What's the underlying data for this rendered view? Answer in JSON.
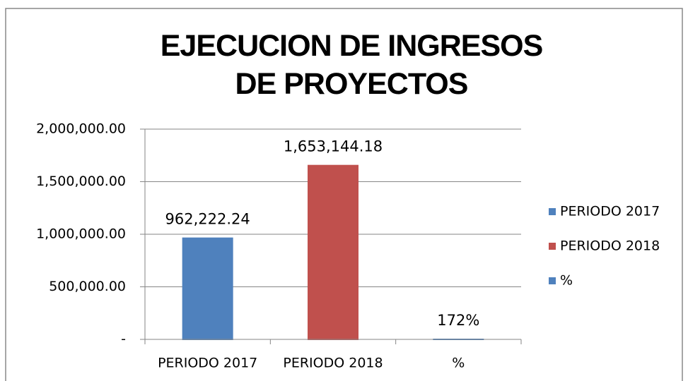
{
  "chart_data": {
    "type": "bar",
    "title": "EJECUCION DE INGRESOS DE PROYECTOS",
    "categories": [
      "PERIODO 2017",
      "PERIODO 2018",
      "%"
    ],
    "series": [
      {
        "name": "PERIODO 2017",
        "color": "#4f81bd",
        "values": [
          962222.24,
          null,
          null
        ],
        "value_labels": [
          "962,222.24",
          null,
          null
        ]
      },
      {
        "name": "PERIODO 2018",
        "color": "#c0504d",
        "values": [
          null,
          1653144.18,
          null
        ],
        "value_labels": [
          null,
          "1,653,144.18",
          null
        ]
      },
      {
        "name": "%",
        "color": "#4f81bd",
        "values": [
          null,
          null,
          1.72
        ],
        "value_labels": [
          null,
          null,
          "172%"
        ]
      }
    ],
    "ylim": [
      0,
      2000000
    ],
    "yticks": [
      {
        "value": 0,
        "label": "-"
      },
      {
        "value": 500000,
        "label": "500,000.00"
      },
      {
        "value": 1000000,
        "label": "1,000,000.00"
      },
      {
        "value": 1500000,
        "label": "1,500,000.00"
      },
      {
        "value": 2000000,
        "label": "2,000,000.00"
      }
    ],
    "grid": true,
    "legend": "right"
  }
}
